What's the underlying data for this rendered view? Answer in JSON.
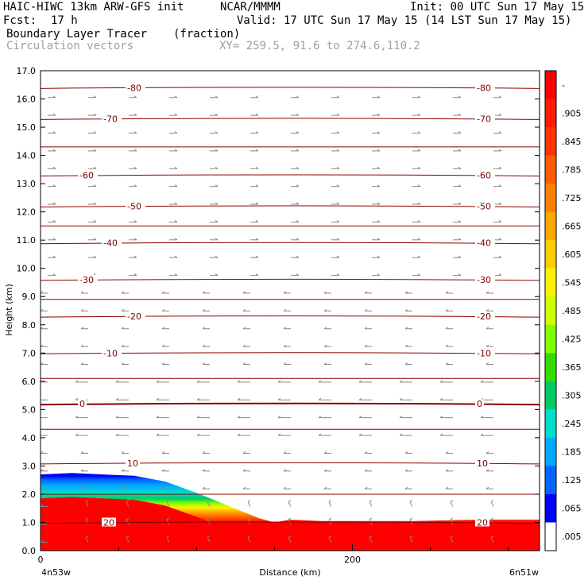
{
  "header": {
    "model": "HAIC-HIWC 13km ARW-GFS init",
    "org": "NCAR/MMMM",
    "init": "Init: 00 UTC Sun 17 May 15",
    "fcst_label": "Fcst:",
    "fcst_value": "17 h",
    "valid": "Valid: 17 UTC Sun 17 May 15 (14 LST Sun 17 May 15)",
    "field": "Boundary Layer Tracer",
    "units": "(fraction)",
    "vectors": "Circulation vectors",
    "xy": "XY= 259.5, 91.6 to 274.6,110.2"
  },
  "chart_data": {
    "type": "heatmap",
    "ylabel": "Height (km)",
    "xlabel": "Distance (km)",
    "x_left_label": "4n53w",
    "x_right_label": "6n51w",
    "xlim": [
      0,
      320
    ],
    "ylim": [
      0,
      17
    ],
    "y_ticks": [
      "0.0",
      "1.0",
      "2.0",
      "3.0",
      "4.0",
      "5.0",
      "6.0",
      "7.0",
      "8.0",
      "9.0",
      "10.0",
      "11.0",
      "12.0",
      "13.0",
      "14.0",
      "15.0",
      "16.0",
      "17.0"
    ],
    "x_ticks": [
      "0",
      "200"
    ],
    "tracer_top_km": {
      "x": [
        0,
        20,
        40,
        60,
        80,
        100,
        120,
        140,
        150,
        160,
        180,
        200,
        240,
        280,
        320
      ],
      "y": [
        2.7,
        2.75,
        2.7,
        2.65,
        2.45,
        2.05,
        1.6,
        1.15,
        1.0,
        1.1,
        1.05,
        1.05,
        1.05,
        1.1,
        1.1
      ]
    },
    "contours": [
      {
        "label": "-80",
        "y_km": 16.4
      },
      {
        "label": "-70",
        "y_km": 15.3
      },
      {
        "label": "-60",
        "y_km": 13.3
      },
      {
        "label": "-50",
        "y_km": 12.2
      },
      {
        "label": "-40",
        "y_km": 10.9
      },
      {
        "label": "-30",
        "y_km": 9.6
      },
      {
        "label": "-20",
        "y_km": 8.3
      },
      {
        "label": "-10",
        "y_km": 7.0
      },
      {
        "label": "0",
        "y_km": 5.2
      },
      {
        "label": "10",
        "y_km": 3.1
      },
      {
        "label": "20",
        "y_km": 1.0
      }
    ],
    "colorbar": {
      "labels": [
        "-",
        ".905",
        ".845",
        ".785",
        ".725",
        ".665",
        ".605",
        ".545",
        ".485",
        ".425",
        ".365",
        ".305",
        ".245",
        ".185",
        ".125",
        ".065",
        ".005"
      ],
      "colors": [
        "#ff0000",
        "#ff1a00",
        "#ff3300",
        "#ff5a00",
        "#ff8000",
        "#ffa600",
        "#ffcc00",
        "#fff200",
        "#ccff00",
        "#80ff00",
        "#33dd00",
        "#00cc66",
        "#00ddcc",
        "#00aaff",
        "#0066ff",
        "#0000ff",
        "#ffffff"
      ]
    }
  }
}
